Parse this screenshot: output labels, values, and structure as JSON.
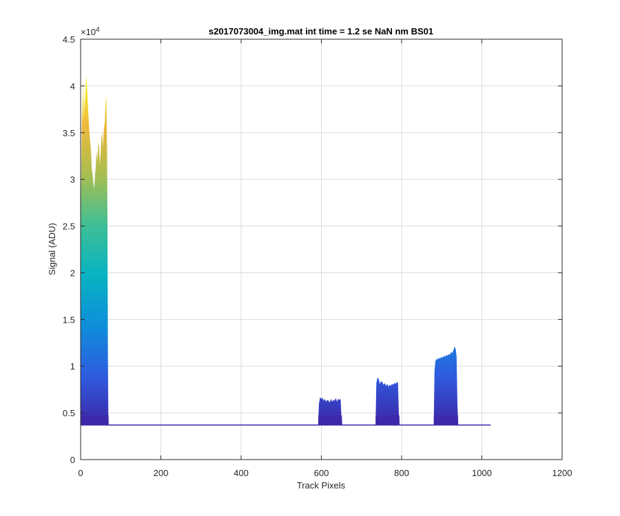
{
  "chart_data": {
    "type": "area",
    "title": "s2017073004_img.mat int time = 1.2 se  NaN nm BS01",
    "xlabel": "Track Pixels",
    "ylabel": "Signal (ADU)",
    "xlim": [
      0,
      1200
    ],
    "ylim": [
      0,
      45000
    ],
    "x_ticks": [
      "0",
      "200",
      "400",
      "600",
      "800",
      "1000",
      "1200"
    ],
    "y_ticks": [
      "0",
      "0.5",
      "1",
      "1.5",
      "2",
      "2.5",
      "3",
      "3.5",
      "4",
      "4.5"
    ],
    "y_exponent_label": "×10",
    "y_exponent_power": "4",
    "grid": true,
    "legend": "none",
    "colormap": [
      "#3e26a8",
      "#2e5de0",
      "#0e8fd9",
      "#08b3c2",
      "#3ebf95",
      "#a8be50",
      "#f0b93c",
      "#f9fb15"
    ],
    "baseline": 3700,
    "series": [
      {
        "segments": [
          {
            "x": [
              0,
              2,
              4,
              6,
              8,
              10,
              12,
              14,
              16,
              18,
              20,
              22,
              24,
              26,
              28,
              30,
              32,
              34,
              36,
              38,
              40,
              42,
              44,
              46,
              48,
              50,
              52,
              54,
              56,
              58,
              60,
              62,
              64,
              66,
              67,
              68,
              69,
              70
            ],
            "y": [
              24000,
              33000,
              39500,
              36000,
              40500,
              37000,
              39000,
              41200,
              40000,
              38000,
              36500,
              35000,
              34000,
              33000,
              31000,
              30500,
              29500,
              29000,
              30500,
              31500,
              33000,
              32000,
              34000,
              33500,
              31500,
              33000,
              34500,
              35000,
              33500,
              35500,
              36000,
              38000,
              39000,
              33000,
              25000,
              12000,
              5000,
              3700
            ]
          },
          {
            "x": [
              592,
              594,
              597,
              600,
              603,
              606,
              609,
              612,
              615,
              618,
              621,
              624,
              627,
              630,
              633,
              636,
              639,
              642,
              645,
              648,
              650,
              652
            ],
            "y": [
              3700,
              6000,
              6700,
              6500,
              6600,
              6300,
              6500,
              6200,
              6400,
              6300,
              6100,
              6500,
              6200,
              6400,
              6300,
              6600,
              6200,
              6500,
              6400,
              6500,
              4500,
              3700
            ]
          },
          {
            "x": [
              735,
              737,
              740,
              743,
              746,
              749,
              752,
              755,
              758,
              761,
              764,
              767,
              770,
              773,
              776,
              779,
              782,
              785,
              788,
              791,
              793,
              795
            ],
            "y": [
              3700,
              8200,
              8800,
              8600,
              8100,
              8400,
              8300,
              8000,
              8200,
              7900,
              8100,
              7800,
              8000,
              7900,
              8100,
              8000,
              8200,
              8100,
              8300,
              8200,
              5000,
              3700
            ]
          },
          {
            "x": [
              880,
              882,
              884,
              887,
              890,
              893,
              896,
              899,
              902,
              905,
              908,
              911,
              914,
              917,
              920,
              923,
              926,
              929,
              932,
              935,
              937,
              939,
              941
            ],
            "y": [
              3700,
              9500,
              10500,
              10800,
              10700,
              10900,
              10800,
              11000,
              10900,
              11100,
              11000,
              11200,
              11100,
              11300,
              11200,
              11500,
              11400,
              11700,
              12100,
              11800,
              11000,
              6000,
              3700
            ]
          }
        ],
        "x_end": 1022
      }
    ]
  }
}
